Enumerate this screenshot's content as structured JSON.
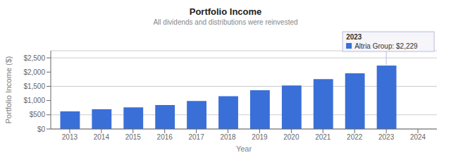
{
  "chart_data": {
    "type": "bar",
    "title": "Portfolio Income",
    "subtitle": "All dividends and distributions were reinvested",
    "xlabel": "Year",
    "ylabel": "Portfolio Income ($)",
    "x": [
      2013,
      2014,
      2015,
      2016,
      2017,
      2018,
      2019,
      2020,
      2021,
      2022,
      2023
    ],
    "values": [
      620,
      695,
      760,
      840,
      985,
      1150,
      1360,
      1530,
      1750,
      1960,
      2229
    ],
    "color": "#3a6fd8",
    "xlim": [
      2012.4,
      2024.6
    ],
    "xticks": [
      2013,
      2014,
      2015,
      2016,
      2017,
      2018,
      2019,
      2020,
      2021,
      2022,
      2023,
      2024
    ],
    "ylim": [
      0,
      2750
    ],
    "yticks": [
      {
        "value": 0,
        "label": "$0"
      },
      {
        "value": 500,
        "label": "$500"
      },
      {
        "value": 1000,
        "label": "$1,000"
      },
      {
        "value": 1500,
        "label": "$1,500"
      },
      {
        "value": 2000,
        "label": "$2,000"
      },
      {
        "value": 2500,
        "label": "$2,500"
      }
    ],
    "grid": true,
    "annotations": [
      {
        "x": 2023,
        "y": 2229,
        "text": [
          "2023",
          "Altria Group: $2,229"
        ]
      }
    ]
  }
}
